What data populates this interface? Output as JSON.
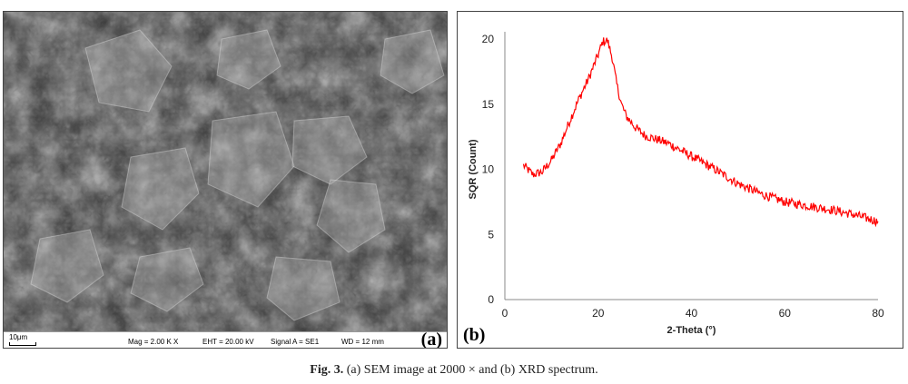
{
  "figure": {
    "caption_label": "Fig. 3.",
    "caption_text": "(a) SEM image at 2000 × and (b) XRD spectrum."
  },
  "sem_panel": {
    "label": "(a)",
    "scale_text": "10μm",
    "mag_text": "Mag =  2.00 K X",
    "eht_text": "EHT = 20.00 kV",
    "signal_text": "Signal A = SE1",
    "wd_text": "WD =  12 mm"
  },
  "xrd_panel": {
    "label": "(b)"
  },
  "chart_data": {
    "type": "line",
    "xlabel": "2-Theta (°)",
    "ylabel": "SQR (Count)",
    "xlim": [
      0,
      80
    ],
    "ylim": [
      0,
      20
    ],
    "xticks": [
      0,
      20,
      40,
      60,
      80
    ],
    "yticks": [
      0,
      5,
      10,
      15,
      20
    ],
    "grid": false,
    "series": [
      {
        "color": "#ff0000",
        "x": [
          4,
          6,
          8,
          10,
          12,
          14,
          16,
          18,
          20,
          21,
          22,
          23,
          24,
          25,
          26,
          28,
          30,
          35,
          40,
          45,
          50,
          55,
          60,
          65,
          70,
          75,
          80
        ],
        "y": [
          10.3,
          9.6,
          9.8,
          10.7,
          12.0,
          13.8,
          15.5,
          17.0,
          18.8,
          19.8,
          19.9,
          18.6,
          16.5,
          15.0,
          14.1,
          13.2,
          12.6,
          12.0,
          11.0,
          10.0,
          8.9,
          8.1,
          7.5,
          7.2,
          6.9,
          6.5,
          6.0
        ]
      }
    ]
  }
}
